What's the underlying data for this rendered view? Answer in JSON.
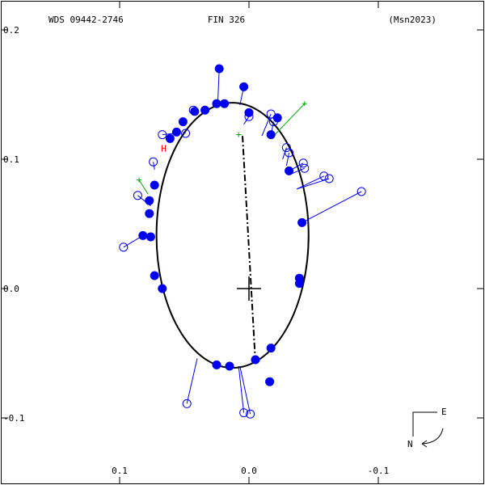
{
  "chart_data": {
    "type": "scatter",
    "header": {
      "left": "WDS 09442-2746",
      "center": "FIN 326",
      "right": "(Msn2023)"
    },
    "xlim": [
      -0.19,
      0.19
    ],
    "ylim": [
      -0.14,
      0.22
    ],
    "x_axis_inverted": true,
    "x_ticks": [
      -0.1,
      0.0,
      0.1
    ],
    "x_tick_labels": [
      "-0.1",
      "0.0",
      "0.1"
    ],
    "y_ticks": [
      0.2,
      0.1,
      0.0,
      -0.1
    ],
    "y_tick_labels": [
      "0.2",
      "0.1",
      "0.0",
      "-0.1"
    ],
    "orbit_ellipse": {
      "center": [
        0.0127,
        0.0412
      ],
      "semi_axis_x": 0.0588,
      "semi_axis_y": 0.1025
    },
    "line_of_nodes": {
      "from": [
        0.005,
        0.118
      ],
      "to": [
        -0.005,
        -0.057
      ]
    },
    "primary_star": [
      0.0,
      0.0
    ],
    "compass": {
      "east_label": "E",
      "north_label": "N"
    },
    "marker_H": {
      "label": "H",
      "x": 0.066,
      "y": 0.109
    },
    "observations_filled": [
      {
        "x": 0.023,
        "y": 0.17,
        "ox": 0.024,
        "oy": 0.146
      },
      {
        "x": 0.004,
        "y": 0.156,
        "ox": 0.007,
        "oy": 0.142
      },
      {
        "x": 0.025,
        "y": 0.143,
        "ox": 0.025,
        "oy": 0.143
      },
      {
        "x": 0.019,
        "y": 0.143,
        "ox": 0.019,
        "oy": 0.143
      },
      {
        "x": 0.034,
        "y": 0.138,
        "ox": 0.034,
        "oy": 0.138
      },
      {
        "x": 0.042,
        "y": 0.137,
        "ox": 0.042,
        "oy": 0.137
      },
      {
        "x": 0.0,
        "y": 0.136,
        "ox": 0.0,
        "oy": 0.136
      },
      {
        "x": -0.022,
        "y": 0.132,
        "ox": -0.022,
        "oy": 0.132
      },
      {
        "x": 0.051,
        "y": 0.129,
        "ox": 0.051,
        "oy": 0.129
      },
      {
        "x": 0.056,
        "y": 0.121,
        "ox": 0.056,
        "oy": 0.121
      },
      {
        "x": -0.017,
        "y": 0.119,
        "ox": -0.017,
        "oy": 0.119
      },
      {
        "x": 0.061,
        "y": 0.116,
        "ox": 0.061,
        "oy": 0.116
      },
      {
        "x": -0.031,
        "y": 0.091,
        "ox": -0.031,
        "oy": 0.091
      },
      {
        "x": 0.073,
        "y": 0.08,
        "ox": 0.073,
        "oy": 0.08
      },
      {
        "x": 0.077,
        "y": 0.068,
        "ox": 0.077,
        "oy": 0.068
      },
      {
        "x": 0.077,
        "y": 0.058,
        "ox": 0.077,
        "oy": 0.058
      },
      {
        "x": -0.041,
        "y": 0.051,
        "ox": -0.041,
        "oy": 0.051
      },
      {
        "x": 0.082,
        "y": 0.041,
        "ox": 0.082,
        "oy": 0.041
      },
      {
        "x": 0.076,
        "y": 0.04,
        "ox": 0.076,
        "oy": 0.04
      },
      {
        "x": 0.073,
        "y": 0.01,
        "ox": 0.073,
        "oy": 0.01
      },
      {
        "x": 0.067,
        "y": 0.0,
        "ox": 0.067,
        "oy": 0.0
      },
      {
        "x": -0.039,
        "y": 0.008,
        "ox": -0.039,
        "oy": 0.008
      },
      {
        "x": -0.039,
        "y": 0.004,
        "ox": -0.039,
        "oy": 0.004
      },
      {
        "x": -0.017,
        "y": -0.046,
        "ox": -0.017,
        "oy": -0.046
      },
      {
        "x": -0.005,
        "y": -0.055,
        "ox": -0.005,
        "oy": -0.055
      },
      {
        "x": 0.025,
        "y": -0.059,
        "ox": 0.025,
        "oy": -0.059
      },
      {
        "x": 0.015,
        "y": -0.06,
        "ox": 0.015,
        "oy": -0.06
      },
      {
        "x": -0.016,
        "y": -0.072,
        "ox": -0.016,
        "oy": -0.072
      }
    ],
    "observations_open": [
      {
        "x": 0.0,
        "y": 0.133,
        "ox": 0.004,
        "oy": 0.127
      },
      {
        "x": -0.017,
        "y": 0.135,
        "ox": -0.01,
        "oy": 0.118
      },
      {
        "x": 0.043,
        "y": 0.138,
        "ox": 0.044,
        "oy": 0.138
      },
      {
        "x": -0.019,
        "y": 0.129,
        "ox": -0.017,
        "oy": 0.119
      },
      {
        "x": 0.067,
        "y": 0.119,
        "ox": 0.058,
        "oy": 0.12
      },
      {
        "x": 0.049,
        "y": 0.12,
        "ox": 0.051,
        "oy": 0.121
      },
      {
        "x": -0.029,
        "y": 0.109,
        "ox": -0.026,
        "oy": 0.1
      },
      {
        "x": -0.031,
        "y": 0.105,
        "ox": -0.029,
        "oy": 0.095
      },
      {
        "x": 0.074,
        "y": 0.098,
        "ox": 0.073,
        "oy": 0.092
      },
      {
        "x": -0.042,
        "y": 0.097,
        "ox": -0.031,
        "oy": 0.091
      },
      {
        "x": -0.043,
        "y": 0.093,
        "ox": -0.031,
        "oy": 0.088
      },
      {
        "x": -0.058,
        "y": 0.087,
        "ox": -0.037,
        "oy": 0.077
      },
      {
        "x": -0.062,
        "y": 0.085,
        "ox": -0.037,
        "oy": 0.077
      },
      {
        "x": 0.086,
        "y": 0.072,
        "ox": 0.076,
        "oy": 0.064
      },
      {
        "x": -0.087,
        "y": 0.075,
        "ox": -0.041,
        "oy": 0.051
      },
      {
        "x": 0.097,
        "y": 0.032,
        "ox": 0.082,
        "oy": 0.041
      },
      {
        "x": 0.048,
        "y": -0.089,
        "ox": 0.04,
        "oy": -0.054
      },
      {
        "x": 0.004,
        "y": -0.096,
        "ox": 0.008,
        "oy": -0.06
      },
      {
        "x": -0.001,
        "y": -0.097,
        "ox": 0.007,
        "oy": -0.06
      }
    ],
    "observations_cross": [
      {
        "x": -0.043,
        "y": 0.143,
        "ox": -0.02,
        "oy": 0.119
      },
      {
        "x": 0.085,
        "y": 0.084,
        "ox": 0.078,
        "oy": 0.073
      },
      {
        "x": 0.008,
        "y": 0.119,
        "ox": 0.006,
        "oy": 0.119
      }
    ],
    "colors": {
      "filled": "#0000ee",
      "open": "#0000ee",
      "residual": "#0000ff",
      "cross": "#00aa00",
      "orbit": "#000000",
      "marker_H": "#ff0000"
    }
  }
}
